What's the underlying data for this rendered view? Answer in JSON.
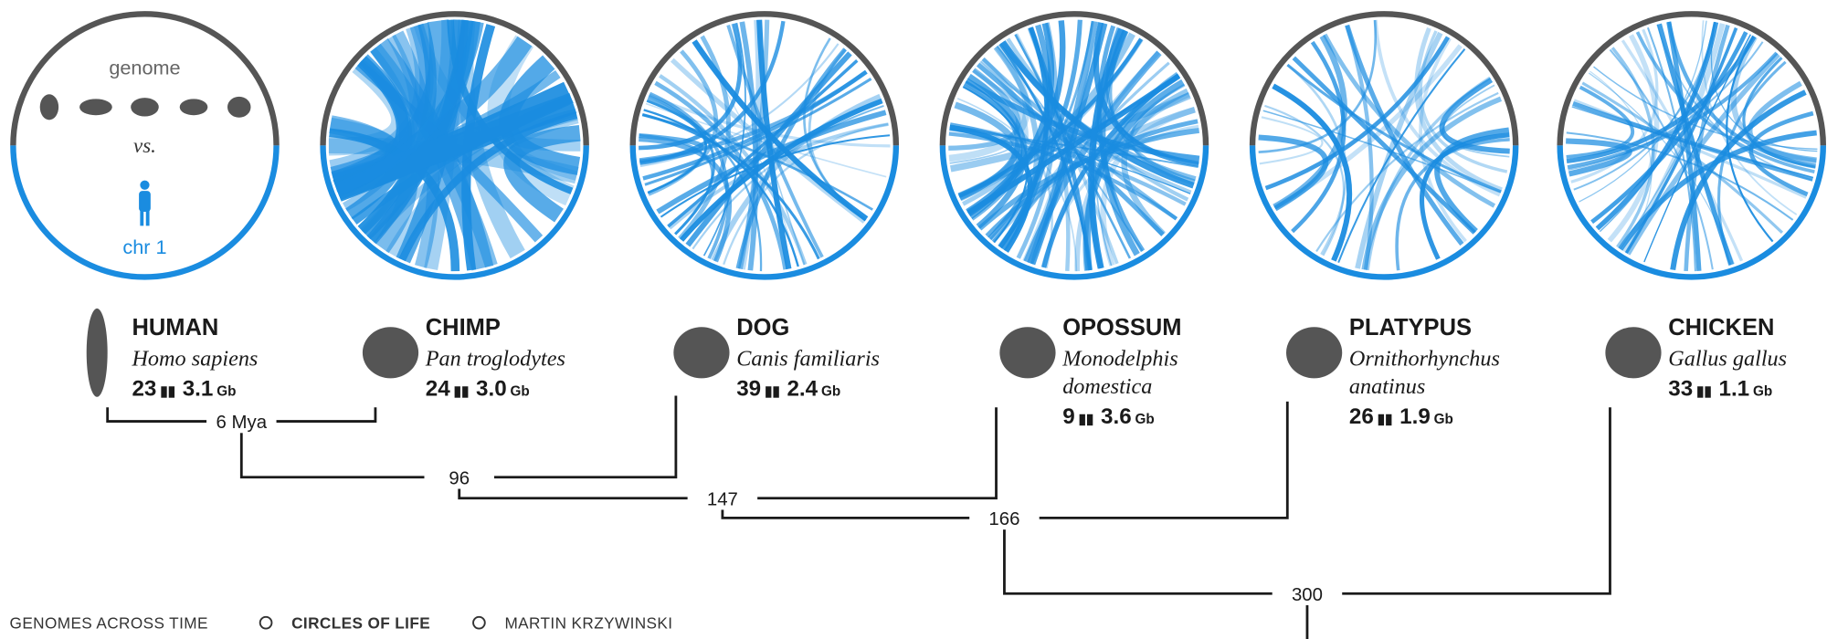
{
  "legend": {
    "top": "genome",
    "middle": "vs.",
    "bottom": "chr 1"
  },
  "species": [
    {
      "name": "HUMAN",
      "latin": [
        "Homo sapiens"
      ],
      "chromosomes": "23",
      "size": "3.1",
      "unit": "Gb"
    },
    {
      "name": "CHIMP",
      "latin": [
        "Pan troglodytes"
      ],
      "chromosomes": "24",
      "size": "3.0",
      "unit": "Gb"
    },
    {
      "name": "DOG",
      "latin": [
        "Canis familiaris"
      ],
      "chromosomes": "39",
      "size": "2.4",
      "unit": "Gb"
    },
    {
      "name": "OPOSSUM",
      "latin": [
        "Monodelphis",
        "domestica"
      ],
      "chromosomes": "9",
      "size": "3.6",
      "unit": "Gb"
    },
    {
      "name": "PLATYPUS",
      "latin": [
        "Ornithorhynchus",
        "anatinus"
      ],
      "chromosomes": "26",
      "size": "1.9",
      "unit": "Gb"
    },
    {
      "name": "CHICKEN",
      "latin": [
        "Gallus gallus"
      ],
      "chromosomes": "33",
      "size": "1.1",
      "unit": "Gb"
    }
  ],
  "tree": [
    "6 Mya",
    "96",
    "147",
    "166",
    "300"
  ],
  "footer": [
    "GENOMES ACROSS TIME",
    "CIRCLES OF LIFE",
    "MARTIN KRZYWINSKI"
  ]
}
